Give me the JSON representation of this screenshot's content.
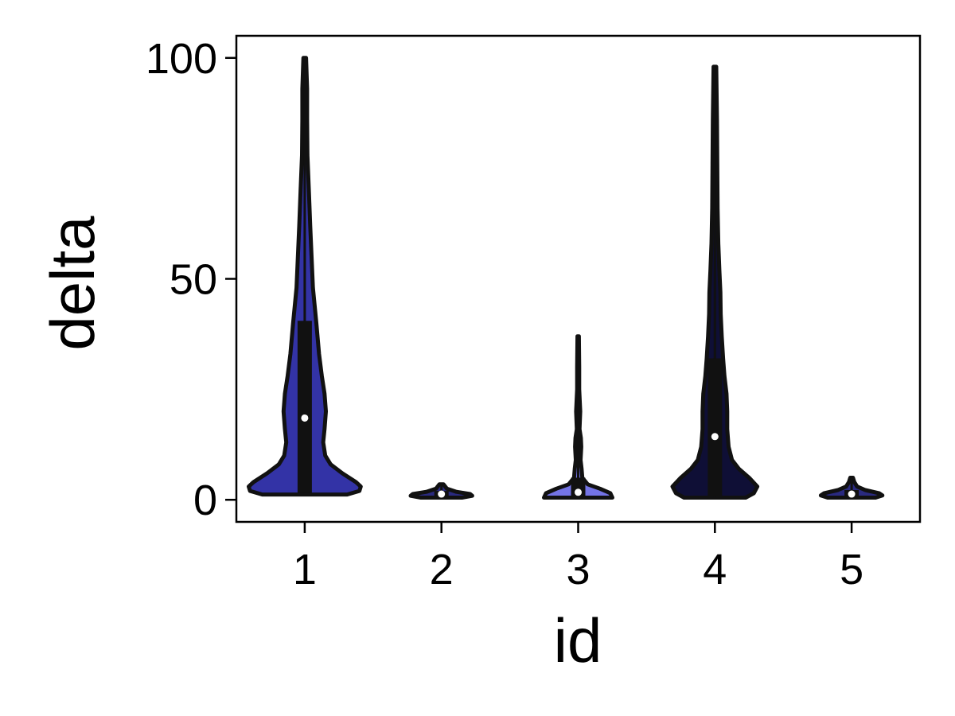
{
  "chart_data": {
    "type": "violin",
    "xlabel": "id",
    "ylabel": "delta",
    "categories": [
      "1",
      "2",
      "3",
      "4",
      "5"
    ],
    "ylim": [
      -5,
      105
    ],
    "yticks": [
      0,
      50,
      100
    ],
    "grid": false,
    "legend": "none",
    "violins": [
      {
        "category": "1",
        "color": "#3333a6",
        "min": 1.2,
        "max": 100,
        "q1": 1.5,
        "median": 18.5,
        "q3": 40.5,
        "density": [
          [
            1.2,
            0.62
          ],
          [
            2,
            0.8
          ],
          [
            3,
            0.82
          ],
          [
            4,
            0.75
          ],
          [
            6,
            0.55
          ],
          [
            8,
            0.38
          ],
          [
            10,
            0.3
          ],
          [
            13,
            0.27
          ],
          [
            16,
            0.29
          ],
          [
            20,
            0.31
          ],
          [
            24,
            0.29
          ],
          [
            28,
            0.25
          ],
          [
            33,
            0.21
          ],
          [
            40,
            0.17
          ],
          [
            48,
            0.12
          ],
          [
            55,
            0.1
          ],
          [
            62,
            0.08
          ],
          [
            70,
            0.06
          ],
          [
            78,
            0.04
          ],
          [
            86,
            0.035
          ],
          [
            93,
            0.035
          ],
          [
            100,
            0.02
          ]
        ]
      },
      {
        "category": "2",
        "color": "#2a2a80",
        "min": 0.5,
        "max": 3.5,
        "q1": 0.8,
        "median": 1.3,
        "q3": 2,
        "density": [
          [
            0.5,
            0.3
          ],
          [
            0.9,
            0.45
          ],
          [
            1.3,
            0.42
          ],
          [
            1.8,
            0.22
          ],
          [
            2.5,
            0.08
          ],
          [
            3.5,
            0.03
          ]
        ]
      },
      {
        "category": "3",
        "color": "#7474e6",
        "min": 0.5,
        "max": 37,
        "q1": 0.8,
        "median": 1.7,
        "q3": 5,
        "density": [
          [
            0.5,
            0.5
          ],
          [
            1.5,
            0.47
          ],
          [
            2.5,
            0.32
          ],
          [
            3.5,
            0.14
          ],
          [
            5,
            0.06
          ],
          [
            7,
            0.05
          ],
          [
            9,
            0.035
          ],
          [
            12,
            0.045
          ],
          [
            14,
            0.04
          ],
          [
            16,
            0.02
          ],
          [
            20,
            0.03
          ],
          [
            25,
            0.015
          ],
          [
            30,
            0.015
          ],
          [
            37,
            0.01
          ]
        ]
      },
      {
        "category": "4",
        "color": "#0f0f36",
        "min": 0.5,
        "max": 98,
        "q1": 0.8,
        "median": 14.3,
        "q3": 32,
        "density": [
          [
            0.5,
            0.45
          ],
          [
            1.5,
            0.57
          ],
          [
            3,
            0.62
          ],
          [
            5,
            0.5
          ],
          [
            7,
            0.35
          ],
          [
            9,
            0.25
          ],
          [
            12,
            0.2
          ],
          [
            16,
            0.18
          ],
          [
            20,
            0.18
          ],
          [
            24,
            0.17
          ],
          [
            28,
            0.14
          ],
          [
            32,
            0.12
          ],
          [
            37,
            0.1
          ],
          [
            42,
            0.085
          ],
          [
            47,
            0.08
          ],
          [
            52,
            0.065
          ],
          [
            58,
            0.05
          ],
          [
            66,
            0.04
          ],
          [
            76,
            0.035
          ],
          [
            86,
            0.03
          ],
          [
            98,
            0.02
          ]
        ]
      },
      {
        "category": "5",
        "color": "#2a2a80",
        "min": 0.5,
        "max": 5,
        "q1": 0.8,
        "median": 1.3,
        "q3": 2.2,
        "density": [
          [
            0.5,
            0.35
          ],
          [
            1,
            0.45
          ],
          [
            1.5,
            0.4
          ],
          [
            2.2,
            0.2
          ],
          [
            3,
            0.08
          ],
          [
            4,
            0.04
          ],
          [
            5,
            0.02
          ]
        ]
      }
    ]
  }
}
